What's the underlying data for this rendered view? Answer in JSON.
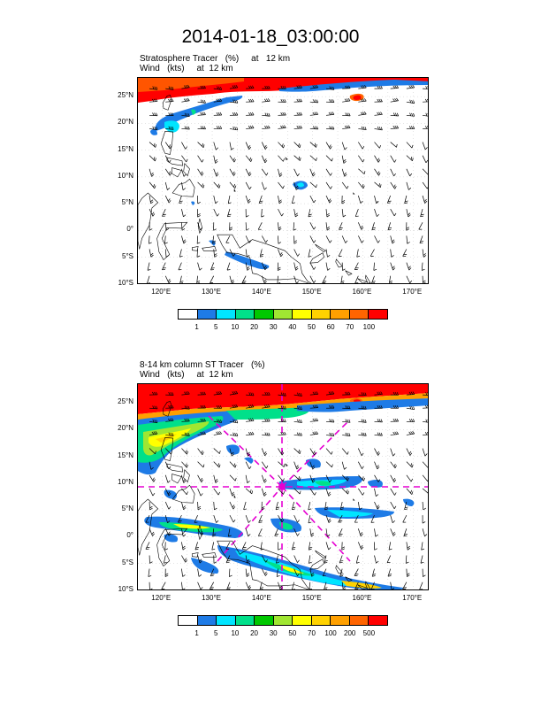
{
  "title": "2014-01-18_03:00:00",
  "colors": {
    "palette": [
      "#ffffff",
      "#1e7be6",
      "#00e5ff",
      "#00e08a",
      "#00c800",
      "#a0e632",
      "#ffff00",
      "#ffd200",
      "#ffa000",
      "#ff6400",
      "#ff0000"
    ],
    "land_outline": "#000000",
    "wind_barb": "#000000",
    "grid": "#c8c8c8",
    "guide_lines": "#e600d2"
  },
  "icons": {
    "wind": "wind-barb-icon"
  },
  "panels": [
    {
      "label_line1": "Stratosphere Tracer   (%)     at   12 km",
      "label_line2": "Wind   (kts)     at  12 km",
      "lat_labels": [
        "25°N",
        "20°N",
        "15°N",
        "10°N",
        "5°N",
        "0°",
        "5°S",
        "10°S"
      ],
      "lon_labels": [
        "120°E",
        "130°E",
        "140°E",
        "150°E",
        "160°E",
        "170°E"
      ],
      "colorbar_labels": [
        "1",
        "5",
        "10",
        "20",
        "30",
        "40",
        "50",
        "60",
        "70",
        "100"
      ],
      "color_levels": [
        1,
        5,
        10,
        20,
        30,
        40,
        50,
        60,
        70,
        100
      ]
    },
    {
      "label_line1": "8-14 km column ST Tracer   (%)",
      "label_line2": "Wind   (kts)     at  12 km",
      "lat_labels": [
        "25°N",
        "20°N",
        "15°N",
        "10°N",
        "5°N",
        "0°",
        "5°S",
        "10°S"
      ],
      "lon_labels": [
        "120°E",
        "130°E",
        "140°E",
        "150°E",
        "160°E",
        "170°E"
      ],
      "colorbar_labels": [
        "1",
        "5",
        "10",
        "20",
        "30",
        "50",
        "70",
        "100",
        "200",
        "500"
      ],
      "color_levels": [
        1,
        5,
        10,
        20,
        30,
        50,
        70,
        100,
        200,
        500
      ]
    }
  ]
}
